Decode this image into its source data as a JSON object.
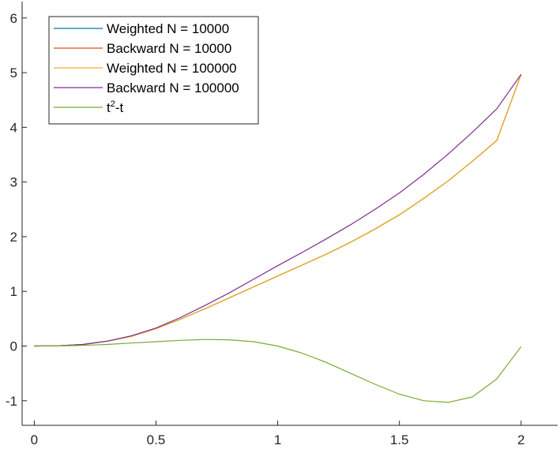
{
  "chart_data": {
    "type": "line",
    "title": "",
    "xlabel": "",
    "ylabel": "",
    "xlim": [
      -0.05,
      2.15
    ],
    "ylim": [
      -1.45,
      6.3
    ],
    "xticks": [
      0,
      0.5,
      1,
      1.5,
      2
    ],
    "xtick_labels": [
      "0",
      "0.5",
      "1",
      "1.5",
      "2"
    ],
    "yticks": [
      -1,
      0,
      1,
      2,
      3,
      4,
      5,
      6
    ],
    "ytick_labels": [
      "-1",
      "0",
      "1",
      "2",
      "3",
      "4",
      "5",
      "6"
    ],
    "grid": false,
    "legend_position": "top-left",
    "series": [
      {
        "name": "Weighted N = 10000",
        "color": "#0072BD",
        "x": [
          0,
          0.1,
          0.2,
          0.3,
          0.4,
          0.5,
          0.6,
          0.7,
          0.8,
          0.9,
          1.0,
          1.1,
          1.2,
          1.3,
          1.4,
          1.5,
          1.6,
          1.7,
          1.8,
          1.9,
          2.0
        ],
        "y": [
          0,
          0.005,
          0.03,
          0.09,
          0.18,
          0.32,
          0.49,
          0.68,
          0.88,
          1.08,
          1.28,
          1.48,
          1.68,
          1.9,
          2.14,
          2.4,
          2.7,
          3.02,
          3.38,
          3.76,
          4.97
        ]
      },
      {
        "name": "Backward N = 10000",
        "color": "#D95319",
        "x": [
          0,
          0.1,
          0.2,
          0.3,
          0.4,
          0.5,
          0.6,
          0.7,
          0.8,
          0.9,
          1.0,
          1.1,
          1.2,
          1.3,
          1.4,
          1.5,
          1.6,
          1.7,
          1.8,
          1.9,
          2.0
        ],
        "y": [
          0,
          0.005,
          0.03,
          0.09,
          0.18,
          0.32,
          0.49,
          0.68,
          0.88,
          1.08,
          1.28,
          1.48,
          1.68,
          1.9,
          2.14,
          2.4,
          2.7,
          3.02,
          3.38,
          3.76,
          4.97
        ]
      },
      {
        "name": "Weighted N = 100000",
        "color": "#EDB120",
        "x": [
          0,
          0.1,
          0.2,
          0.3,
          0.4,
          0.5,
          0.6,
          0.7,
          0.8,
          0.9,
          1.0,
          1.1,
          1.2,
          1.3,
          1.4,
          1.5,
          1.6,
          1.7,
          1.8,
          1.9,
          2.0
        ],
        "y": [
          0,
          0.005,
          0.03,
          0.09,
          0.18,
          0.32,
          0.49,
          0.68,
          0.88,
          1.08,
          1.28,
          1.48,
          1.68,
          1.9,
          2.14,
          2.4,
          2.7,
          3.02,
          3.38,
          3.76,
          4.97
        ]
      },
      {
        "name": "Backward N = 100000",
        "color": "#7E2F8E",
        "x": [
          0,
          0.1,
          0.2,
          0.3,
          0.4,
          0.5,
          0.6,
          0.7,
          0.8,
          0.9,
          1.0,
          1.1,
          1.2,
          1.3,
          1.4,
          1.5,
          1.6,
          1.7,
          1.8,
          1.9,
          2.0
        ],
        "y": [
          0,
          0.005,
          0.03,
          0.09,
          0.19,
          0.33,
          0.52,
          0.74,
          0.97,
          1.22,
          1.47,
          1.71,
          1.96,
          2.22,
          2.5,
          2.8,
          3.14,
          3.51,
          3.91,
          4.34,
          4.97
        ]
      },
      {
        "name": "t^2-t",
        "label_base": "t",
        "label_sup": "2",
        "label_tail": "-t",
        "color": "#77AC30",
        "x": [
          0,
          0.1,
          0.2,
          0.3,
          0.4,
          0.5,
          0.6,
          0.7,
          0.8,
          0.9,
          1.0,
          1.1,
          1.2,
          1.3,
          1.4,
          1.5,
          1.6,
          1.7,
          1.8,
          1.9,
          2.0
        ],
        "y": [
          0,
          0.002,
          0.012,
          0.03,
          0.055,
          0.08,
          0.105,
          0.12,
          0.115,
          0.08,
          0.0,
          -0.13,
          -0.3,
          -0.5,
          -0.7,
          -0.88,
          -1.0,
          -1.03,
          -0.93,
          -0.6,
          -0.01
        ]
      }
    ]
  }
}
